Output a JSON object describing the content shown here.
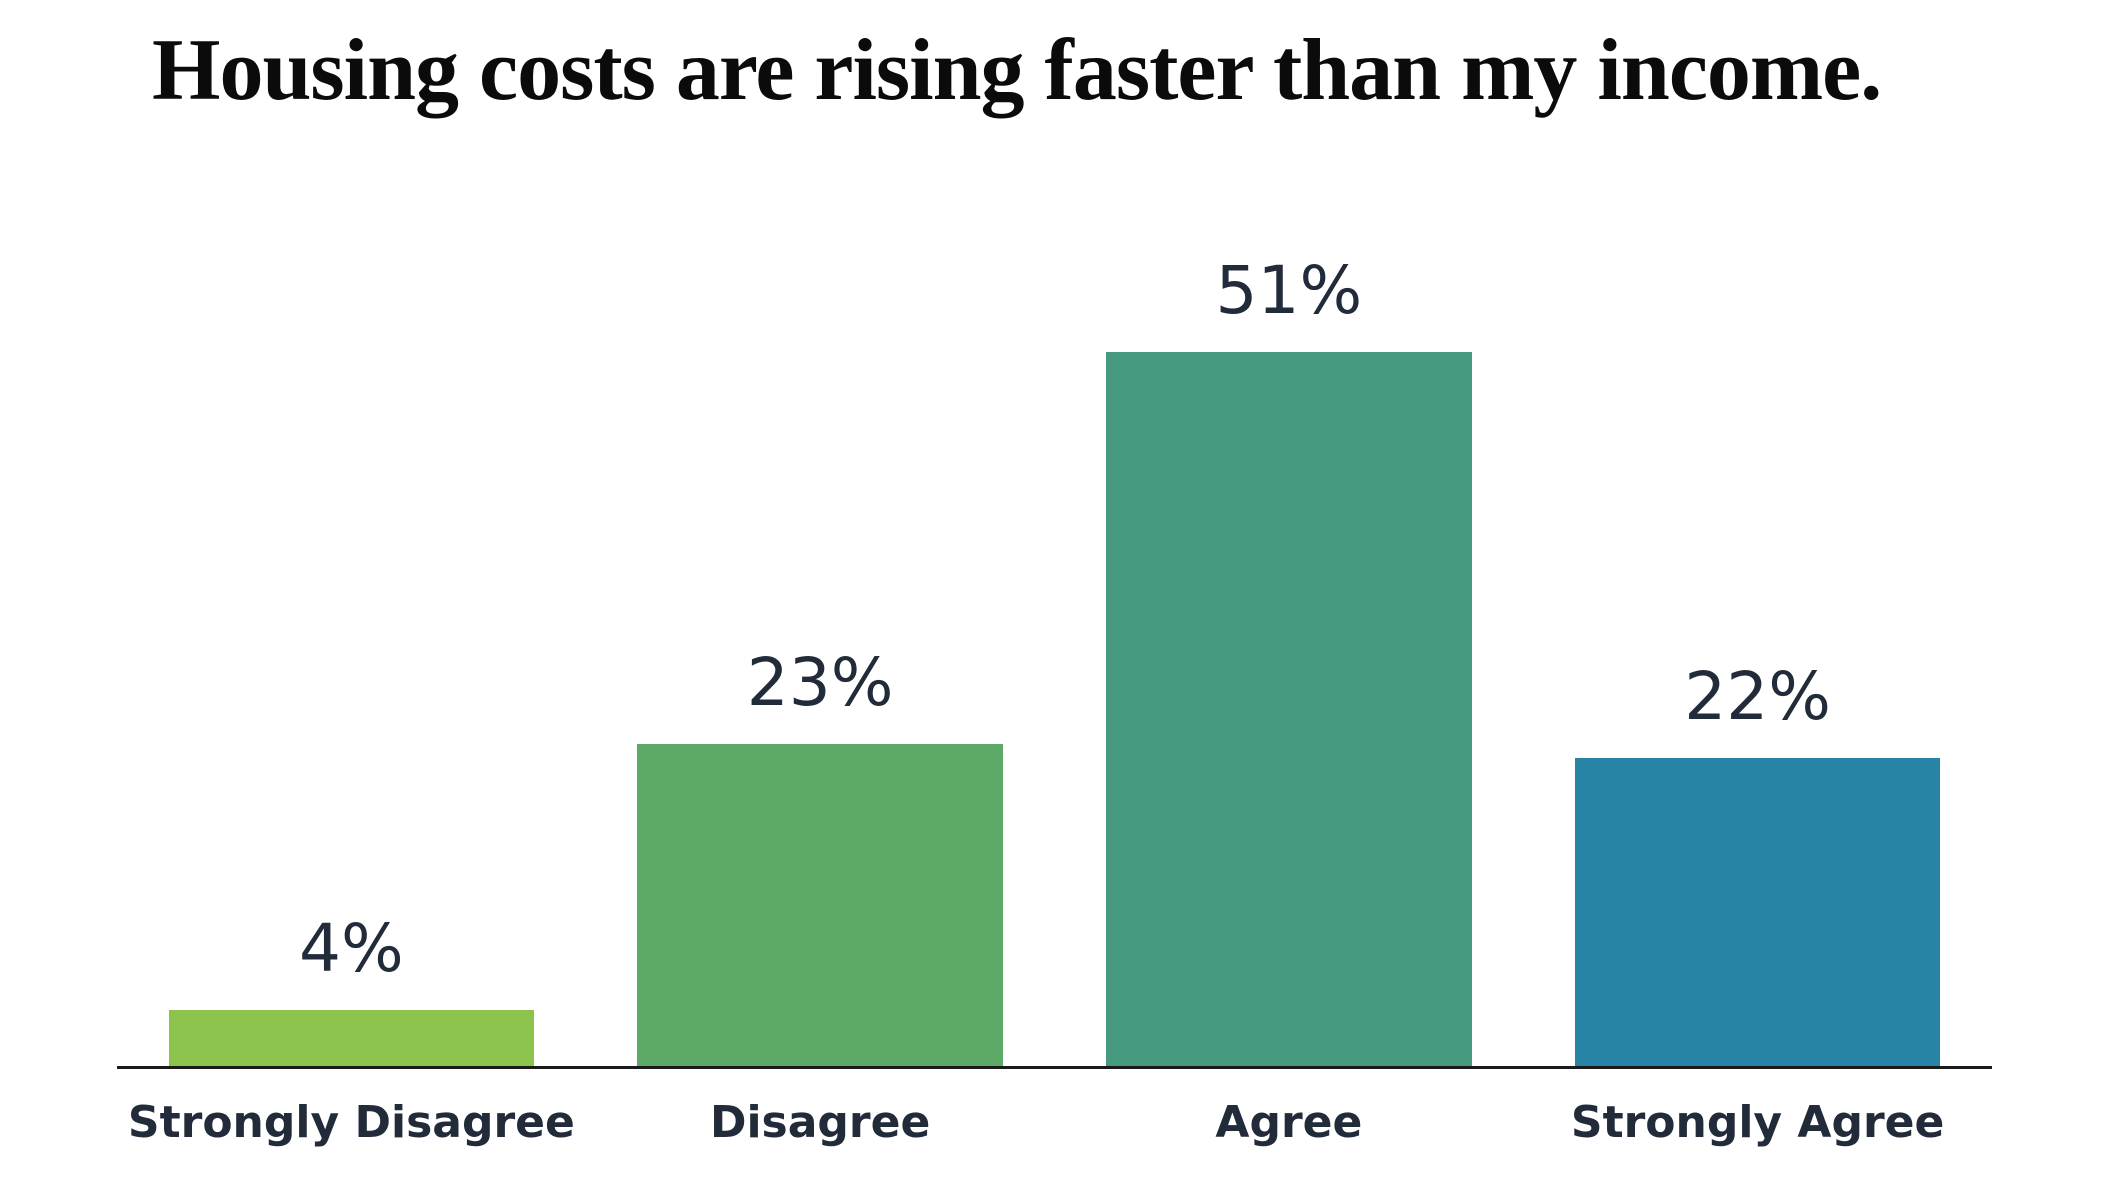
{
  "chart_data": {
    "type": "bar",
    "title": "Housing costs are rising faster than my income.",
    "categories": [
      "Strongly Disagree",
      "Disagree",
      "Agree",
      "Strongly Agree"
    ],
    "values": [
      4,
      23,
      51,
      22
    ],
    "value_labels": [
      "4%",
      "23%",
      "51%",
      "22%"
    ],
    "colors": [
      "#8cc34d",
      "#5da968",
      "#44997f",
      "#2884a5"
    ],
    "title_color": "#0b0b0b",
    "label_color": "#222b3a",
    "axis_color": "#1a1a1a",
    "background": "#ffffff",
    "xlabel": "",
    "ylabel": "",
    "ylim": [
      0,
      60
    ],
    "grid": false,
    "legend": "none",
    "orientation": "vertical",
    "value_label_position": "above-bar"
  }
}
